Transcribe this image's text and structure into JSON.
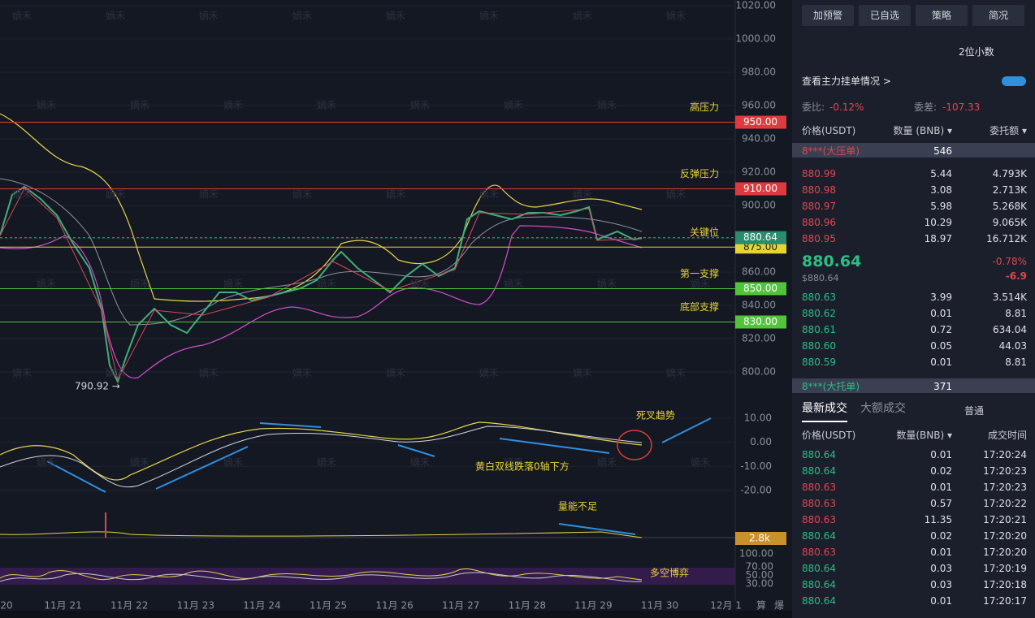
{
  "watermark": "嫡禾",
  "price_axis": {
    "ylim": [
      800,
      1020
    ],
    "ticks": [
      {
        "value": 1020,
        "label": "1020.00"
      },
      {
        "value": 1000,
        "label": "1000.00"
      },
      {
        "value": 980,
        "label": "980.00"
      },
      {
        "value": 960,
        "label": "960.00"
      },
      {
        "value": 940,
        "label": "940.00"
      },
      {
        "value": 920,
        "label": "920.00"
      },
      {
        "value": 900,
        "label": "900.00"
      },
      {
        "value": 880,
        "label": "880.00"
      },
      {
        "value": 860,
        "label": "860.00"
      },
      {
        "value": 840,
        "label": "840.00"
      },
      {
        "value": 820,
        "label": "820.00"
      },
      {
        "value": 800,
        "label": "800.00"
      }
    ]
  },
  "levels": [
    {
      "value": 950,
      "label": "950.00",
      "name": "高压力",
      "color": "#e0393e"
    },
    {
      "value": 910,
      "label": "910.00",
      "name": "反弹压力",
      "color": "#e0393e"
    },
    {
      "value": 875,
      "label": "875.00",
      "name": "关键位",
      "color": "#e8d335"
    },
    {
      "value": 850,
      "label": "850.00",
      "name": "第一支撑",
      "color": "#52c43a"
    },
    {
      "value": 830,
      "label": "830.00",
      "name": "底部支撑",
      "color": "#52c43a"
    }
  ],
  "last_price": {
    "value": 880.64,
    "label": "880.64"
  },
  "low_marker": {
    "value": 790.92,
    "label": "790.92 →"
  },
  "macd_axis": {
    "ylim": [
      -21,
      15
    ],
    "ticks": [
      {
        "value": 10,
        "label": "10.00"
      },
      {
        "value": 0,
        "label": "0.00"
      },
      {
        "value": -10,
        "label": "-10.00"
      },
      {
        "value": -20,
        "label": "-20.00"
      }
    ]
  },
  "volume_label": "2.8k",
  "rsi_axis": {
    "ylim": [
      0,
      100
    ],
    "ticks": [
      {
        "value": 100,
        "label": "100.00"
      },
      {
        "value": 70,
        "label": "70.00"
      },
      {
        "value": 50,
        "label": "50.00"
      },
      {
        "value": 30,
        "label": "30.00"
      }
    ]
  },
  "annotations": [
    "死叉趋势",
    "黄白双线跌落0轴下方",
    "量能不足",
    "多空博弈"
  ],
  "x_labels": [
    "20",
    "11月 21",
    "11月 22",
    "11月 23",
    "11月 24",
    "11月 25",
    "11月 26",
    "11月 27",
    "11月 28",
    "11月 29",
    "11月 30",
    "12月 1"
  ],
  "x_tools": [
    "算",
    "爆"
  ],
  "panel": {
    "buttons": [
      "加预警",
      "已自选",
      "策略",
      "简况"
    ],
    "decimals": "2位小数",
    "main_orders": "查看主力挂单情况 >",
    "ratio_label": "委比:",
    "ratio": "-0.12%",
    "diff_label": "委差:",
    "diff": "-107.33",
    "headers": [
      "价格(USDT)",
      "数量 (BNB) ▾",
      "委托额 ▾"
    ],
    "big_ask": [
      "8***(大压单)",
      "546"
    ],
    "asks": [
      [
        "880.99",
        "5.44",
        "4.793K"
      ],
      [
        "880.98",
        "3.08",
        "2.713K"
      ],
      [
        "880.97",
        "5.98",
        "5.268K"
      ],
      [
        "880.96",
        "10.29",
        "9.065K"
      ],
      [
        "880.95",
        "18.97",
        "16.712K"
      ]
    ],
    "last": "880.64",
    "last_usd": "$880.64",
    "change_pct": "-0.78%",
    "change": "-6.9",
    "bids": [
      [
        "880.63",
        "3.99",
        "3.514K"
      ],
      [
        "880.62",
        "0.01",
        "8.81"
      ],
      [
        "880.61",
        "0.72",
        "634.04"
      ],
      [
        "880.60",
        "0.05",
        "44.03"
      ],
      [
        "880.59",
        "0.01",
        "8.81"
      ]
    ],
    "big_bid": [
      "8***(大托单)",
      "371"
    ],
    "tabs": [
      "最新成交",
      "大额成交"
    ],
    "normal": "普通",
    "trade_headers": [
      "价格(USDT)",
      "数量(BNB) ▾",
      "成交时间"
    ],
    "trades": [
      {
        "row": [
          "880.64",
          "0.01",
          "17:20:24"
        ],
        "color": "#2ebd85"
      },
      {
        "row": [
          "880.64",
          "0.02",
          "17:20:23"
        ],
        "color": "#2ebd85"
      },
      {
        "row": [
          "880.63",
          "0.01",
          "17:20:23"
        ],
        "color": "#e0474f"
      },
      {
        "row": [
          "880.63",
          "0.57",
          "17:20:22"
        ],
        "color": "#e0474f"
      },
      {
        "row": [
          "880.63",
          "11.35",
          "17:20:21"
        ],
        "color": "#e0474f"
      },
      {
        "row": [
          "880.64",
          "0.02",
          "17:20:20"
        ],
        "color": "#2ebd85"
      },
      {
        "row": [
          "880.63",
          "0.01",
          "17:20:20"
        ],
        "color": "#e0474f"
      },
      {
        "row": [
          "880.64",
          "0.03",
          "17:20:19"
        ],
        "color": "#2ebd85"
      },
      {
        "row": [
          "880.64",
          "0.03",
          "17:20:18"
        ],
        "color": "#2ebd85"
      },
      {
        "row": [
          "880.64",
          "0.01",
          "17:20:17"
        ],
        "color": "#2ebd85"
      }
    ]
  }
}
